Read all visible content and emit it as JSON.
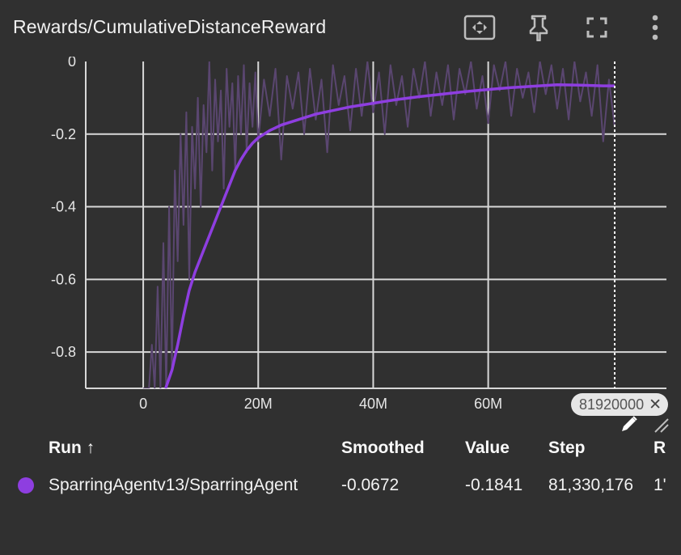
{
  "header": {
    "title": "Rewards/CumulativeDistanceReward",
    "tools": [
      {
        "name": "fit-domain-icon"
      },
      {
        "name": "pin-icon"
      },
      {
        "name": "fullscreen-icon"
      },
      {
        "name": "more-vert-icon"
      }
    ]
  },
  "chart_data": {
    "type": "line",
    "xlim": [
      -10000000,
      91000000
    ],
    "ylim": [
      -0.9,
      0.0
    ],
    "x_ticks": [
      0,
      20000000,
      40000000,
      60000000
    ],
    "x_tick_labels": [
      "0",
      "20M",
      "40M",
      "60M"
    ],
    "y_ticks": [
      0,
      -0.2,
      -0.4,
      -0.6,
      -0.8
    ],
    "y_tick_labels": [
      "0",
      "-0.2",
      "-0.4",
      "-0.6",
      "-0.8"
    ],
    "grid": true,
    "cursor_step": 82000000,
    "series": [
      {
        "name": "SparringAgentv13/SparringAgent",
        "color": "#8e3ee0",
        "role": "smoothed",
        "x": [
          3900000,
          5000000,
          6000000,
          7000000,
          8000000,
          9000000,
          10000000,
          11000000,
          12000000,
          13000000,
          14000000,
          15000000,
          16000000,
          17000000,
          18000000,
          19000000,
          20000000,
          22000000,
          24000000,
          26000000,
          28000000,
          30000000,
          33000000,
          36000000,
          40000000,
          44000000,
          48000000,
          52000000,
          56000000,
          60000000,
          64000000,
          68000000,
          72000000,
          76000000,
          80000000,
          82000000
        ],
        "y": [
          -0.9,
          -0.85,
          -0.78,
          -0.7,
          -0.63,
          -0.58,
          -0.54,
          -0.5,
          -0.46,
          -0.42,
          -0.38,
          -0.34,
          -0.3,
          -0.27,
          -0.245,
          -0.225,
          -0.21,
          -0.19,
          -0.175,
          -0.165,
          -0.155,
          -0.145,
          -0.135,
          -0.125,
          -0.115,
          -0.105,
          -0.097,
          -0.09,
          -0.083,
          -0.077,
          -0.072,
          -0.068,
          -0.064,
          -0.065,
          -0.067,
          -0.067
        ]
      },
      {
        "name": "SparringAgentv13/SparringAgent raw",
        "color": "#5a4670",
        "role": "raw",
        "x": [
          0,
          500000,
          1000000,
          1500000,
          2000000,
          2500000,
          3000000,
          3500000,
          4000000,
          4500000,
          5000000,
          5500000,
          6000000,
          6500000,
          7000000,
          7500000,
          8000000,
          8500000,
          9000000,
          9500000,
          10000000,
          10500000,
          11000000,
          11500000,
          12000000,
          12500000,
          13000000,
          13500000,
          14000000,
          14500000,
          15000000,
          15500000,
          16000000,
          16500000,
          17000000,
          17500000,
          18000000,
          18500000,
          19000000,
          19500000,
          20000000,
          21000000,
          22000000,
          23000000,
          24000000,
          25000000,
          26000000,
          27000000,
          28000000,
          29000000,
          30000000,
          31000000,
          32000000,
          33000000,
          34000000,
          35000000,
          36000000,
          37000000,
          38000000,
          39000000,
          40000000,
          41000000,
          42000000,
          43000000,
          44000000,
          45000000,
          46000000,
          47000000,
          48000000,
          49000000,
          50000000,
          51000000,
          52000000,
          53000000,
          54000000,
          55000000,
          56000000,
          57000000,
          58000000,
          59000000,
          60000000,
          61000000,
          62000000,
          63000000,
          64000000,
          65000000,
          66000000,
          67000000,
          68000000,
          69000000,
          70000000,
          71000000,
          72000000,
          73000000,
          74000000,
          75000000,
          76000000,
          77000000,
          78000000,
          79000000,
          80000000,
          81000000,
          82000000
        ],
        "y": [
          -0.9,
          -0.9,
          -0.9,
          -0.78,
          -0.9,
          -0.62,
          -0.9,
          -0.5,
          -0.9,
          -0.4,
          -0.85,
          -0.3,
          -0.55,
          -0.2,
          -0.45,
          -0.14,
          -0.6,
          -0.18,
          -0.35,
          -0.1,
          -0.4,
          -0.12,
          -0.25,
          -0.0,
          -0.3,
          -0.05,
          -0.22,
          -0.08,
          -0.35,
          -0.02,
          -0.18,
          -0.06,
          -0.3,
          -0.04,
          -0.2,
          -0.01,
          -0.25,
          -0.06,
          -0.18,
          -0.03,
          -0.22,
          -0.05,
          -0.15,
          -0.02,
          -0.27,
          -0.04,
          -0.13,
          -0.03,
          -0.2,
          -0.02,
          -0.16,
          -0.05,
          -0.25,
          -0.01,
          -0.12,
          -0.04,
          -0.19,
          -0.02,
          -0.15,
          -0.0,
          -0.14,
          -0.03,
          -0.2,
          -0.01,
          -0.12,
          -0.04,
          -0.18,
          -0.02,
          -0.1,
          -0.0,
          -0.15,
          -0.03,
          -0.12,
          -0.01,
          -0.16,
          -0.02,
          -0.09,
          -0.0,
          -0.13,
          -0.04,
          -0.17,
          -0.01,
          -0.08,
          -0.0,
          -0.15,
          -0.02,
          -0.1,
          -0.03,
          -0.14,
          -0.0,
          -0.09,
          -0.01,
          -0.13,
          -0.02,
          -0.16,
          -0.0,
          -0.11,
          -0.03,
          -0.15,
          -0.01,
          -0.22,
          -0.05,
          -0.18
        ]
      }
    ]
  },
  "cursor_chip": {
    "label": "81920000",
    "close_glyph": "✕"
  },
  "table": {
    "headers": {
      "run": "Run ↑",
      "smoothed": "Smoothed",
      "value": "Value",
      "step": "Step",
      "relative": "R"
    },
    "row": {
      "run": "SparringAgentv13/SparringAgent",
      "color": "#8e3ee0",
      "smoothed": "-0.0672",
      "value": "-0.1841",
      "step": "81,330,176",
      "relative": "1'"
    }
  }
}
